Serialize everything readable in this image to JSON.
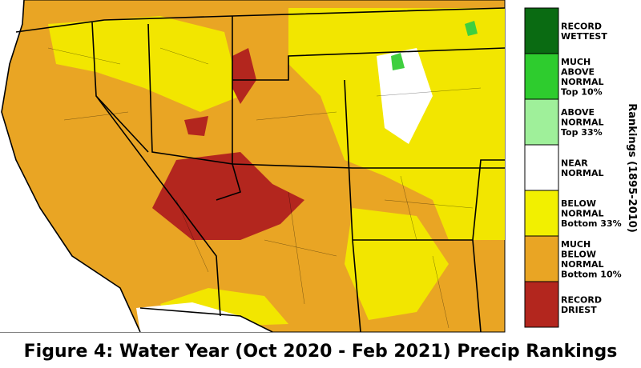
{
  "legend": {
    "title": "Rankings (1895-2010)",
    "items": [
      {
        "lines": [
          "RECORD",
          "WETTEST"
        ]
      },
      {
        "lines": [
          "MUCH",
          "ABOVE",
          "NORMAL",
          "Top 10%"
        ]
      },
      {
        "lines": [
          "ABOVE",
          "NORMAL",
          "Top 33%"
        ]
      },
      {
        "lines": [
          "NEAR",
          "NORMAL"
        ]
      },
      {
        "lines": [
          "BELOW",
          "NORMAL",
          "Bottom 33%"
        ]
      },
      {
        "lines": [
          "MUCH",
          "BELOW",
          "NORMAL",
          "Bottom 10%"
        ]
      },
      {
        "lines": [
          "RECORD",
          "DRIEST"
        ]
      }
    ]
  },
  "caption": "Figure 4: Water Year (Oct 2020 - Feb 2021) Precip Rankings"
}
